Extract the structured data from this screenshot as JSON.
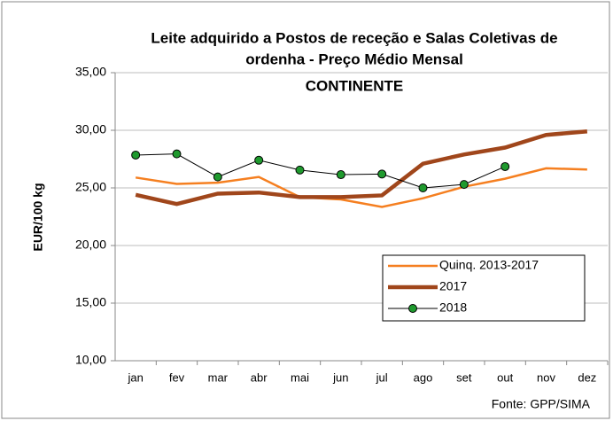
{
  "chart_data": {
    "type": "line",
    "title": [
      "Leite adquirido a Postos de receção e Salas Coletivas de",
      "ordenha -  Preço Médio Mensal"
    ],
    "subtitle": "CONTINENTE",
    "y_label": "EUR/100 kg",
    "source": "Fonte: GPP/SIMA",
    "categories": [
      "jan",
      "fev",
      "mar",
      "abr",
      "mai",
      "jun",
      "jul",
      "ago",
      "set",
      "out",
      "nov",
      "dez"
    ],
    "series": [
      {
        "name": "Quinq. 2013-2017",
        "color": "#f57f20",
        "values": [
          25.9,
          25.35,
          25.45,
          25.95,
          24.2,
          24.0,
          23.35,
          24.1,
          25.1,
          25.8,
          26.7,
          26.6
        ]
      },
      {
        "name": "2017",
        "color": "#a0461b",
        "values": [
          24.4,
          23.6,
          24.5,
          24.6,
          24.2,
          24.2,
          24.35,
          27.1,
          27.9,
          28.5,
          29.6,
          29.9
        ]
      },
      {
        "name": "2018",
        "color": "#000000",
        "marker_color": "#1f9a2e",
        "values": [
          27.85,
          27.95,
          25.95,
          27.4,
          26.55,
          26.15,
          26.2,
          25.0,
          25.3,
          26.85,
          null,
          null
        ]
      }
    ],
    "ylim": [
      10,
      35
    ],
    "yticks": [
      {
        "value": 10,
        "label": "10,00"
      },
      {
        "value": 15,
        "label": "15,00"
      },
      {
        "value": 20,
        "label": "20,00"
      },
      {
        "value": 25,
        "label": "25,00"
      },
      {
        "value": 30,
        "label": "30,00"
      },
      {
        "value": 35,
        "label": "35,00"
      }
    ],
    "grid": true,
    "legend": "lower right"
  }
}
